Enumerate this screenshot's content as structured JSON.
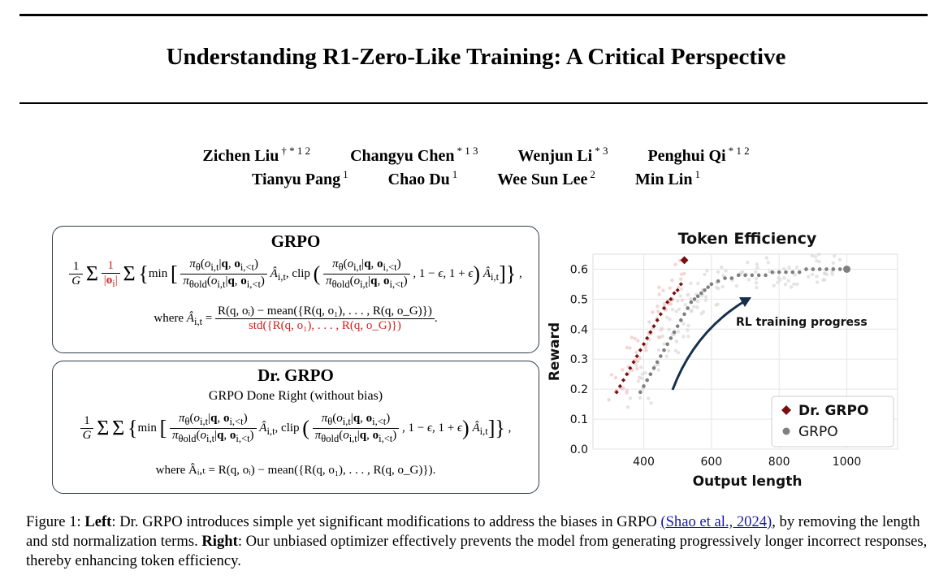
{
  "paper": {
    "title": "Understanding R1-Zero-Like Training: A Critical Perspective",
    "authors_row1": [
      {
        "name": "Zichen Liu",
        "sup": "† * 1 2"
      },
      {
        "name": "Changyu Chen",
        "sup": "* 1 3"
      },
      {
        "name": "Wenjun Li",
        "sup": "* 3"
      },
      {
        "name": "Penghui Qi",
        "sup": "* 1 2"
      }
    ],
    "authors_row2": [
      {
        "name": "Tianyu Pang",
        "sup": "1"
      },
      {
        "name": "Chao Du",
        "sup": "1"
      },
      {
        "name": "Wee Sun Lee",
        "sup": "2"
      },
      {
        "name": "Min Lin",
        "sup": "1"
      }
    ]
  },
  "grpo_box": {
    "title": "GRPO",
    "where_label": "where",
    "advantage_numerator": "R(q, oᵢ) − mean({R(q, o₁), . . . , R(q, o_G)})",
    "advantage_denominator": "std({R(q, o₁), . . . , R(q, o_G)})"
  },
  "drgrpo_box": {
    "title": "Dr. GRPO",
    "subtitle": "GRPO Done Right (without bias)",
    "advantage_line": "where Âᵢ,ₜ = R(q, oᵢ) − mean({R(q, o₁), . . . , R(q, o_G)})."
  },
  "chart_data": {
    "type": "scatter",
    "title": "Token Efficiency",
    "xlabel": "Output length",
    "ylabel": "Reward",
    "xlim": [
      250,
      1150
    ],
    "ylim": [
      0.0,
      0.65
    ],
    "xticks": [
      400,
      600,
      800,
      1000
    ],
    "yticks": [
      0.0,
      0.1,
      0.2,
      0.3,
      0.4,
      0.5,
      0.6
    ],
    "grid": true,
    "legend_position": "bottom-right",
    "annotation": "RL training progress",
    "series": [
      {
        "name": "Dr. GRPO",
        "color": "#7a0e0e",
        "marker": "diamond",
        "x": [
          320,
          330,
          340,
          350,
          360,
          370,
          380,
          390,
          400,
          410,
          420,
          430,
          440,
          450,
          460,
          470,
          480,
          490,
          500,
          510,
          520
        ],
        "y": [
          0.19,
          0.21,
          0.23,
          0.25,
          0.27,
          0.29,
          0.31,
          0.33,
          0.35,
          0.37,
          0.39,
          0.41,
          0.43,
          0.45,
          0.47,
          0.49,
          0.5,
          0.52,
          0.53,
          0.55,
          0.63
        ]
      },
      {
        "name": "GRPO",
        "color": "#808080",
        "marker": "circle",
        "x": [
          390,
          400,
          410,
          420,
          430,
          440,
          450,
          460,
          470,
          480,
          490,
          500,
          510,
          520,
          530,
          540,
          550,
          560,
          570,
          580,
          590,
          600,
          620,
          640,
          660,
          680,
          700,
          720,
          740,
          760,
          780,
          800,
          820,
          840,
          860,
          880,
          900,
          920,
          940,
          960,
          980,
          1000
        ],
        "y": [
          0.19,
          0.21,
          0.23,
          0.25,
          0.27,
          0.29,
          0.31,
          0.33,
          0.35,
          0.37,
          0.39,
          0.41,
          0.43,
          0.45,
          0.47,
          0.49,
          0.5,
          0.51,
          0.52,
          0.53,
          0.54,
          0.55,
          0.56,
          0.57,
          0.57,
          0.58,
          0.58,
          0.58,
          0.58,
          0.58,
          0.59,
          0.59,
          0.59,
          0.59,
          0.59,
          0.6,
          0.6,
          0.6,
          0.6,
          0.6,
          0.6,
          0.6
        ]
      }
    ]
  },
  "caption": {
    "label": "Figure 1:",
    "left_label": "Left",
    "text1": ": Dr. GRPO introduces simple yet significant modifications to address the biases in GRPO ",
    "citation": "(Shao et al., 2024)",
    "text2": ", by removing the length and std normalization terms. ",
    "right_label": "Right",
    "text3": ": Our unbiased optimizer effectively prevents the model from generating progressively longer incorrect responses, thereby enhancing token efficiency."
  }
}
